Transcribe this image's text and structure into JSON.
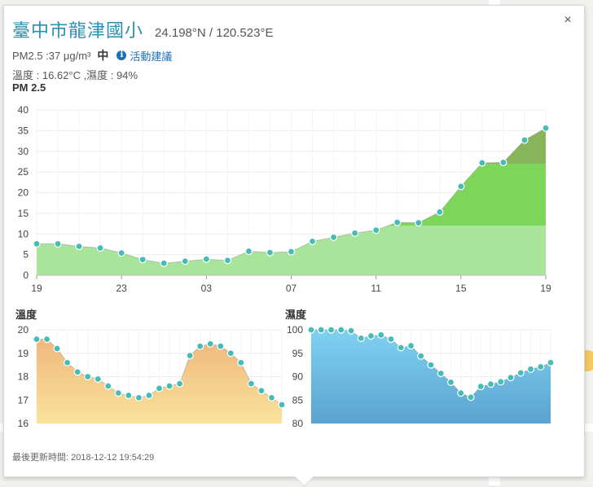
{
  "station": {
    "name": "臺中市龍津國小",
    "coords": "24.198°N / 120.523°E"
  },
  "summary": {
    "pm25_text": "PM2.5 :37 μg/m³",
    "level": "中",
    "advice_link": "活動建議",
    "weather_text": "溫度 : 16.62°C ,濕度 : 94%"
  },
  "close_icon": "×",
  "footer_text": "最後更新時間: 2018-12-12 19:54:29",
  "colors": {
    "station_name": "#2a8fb0",
    "marker": "#45bdb6",
    "pm_good": "#a8e49a",
    "pm_moderate": "#7dd65a",
    "pm_high": "#86b55a",
    "temp_fill": "#f5c98f",
    "hum_fill": "#6cb6e0"
  },
  "chart_data": [
    {
      "type": "area",
      "title": "PM 2.5",
      "x_tick_labels": [
        "19",
        "23",
        "03",
        "07",
        "11",
        "15",
        "19"
      ],
      "y_ticks": [
        0,
        5,
        10,
        15,
        20,
        25,
        30,
        35,
        40
      ],
      "ylim": [
        0,
        40
      ],
      "grid": true,
      "values": [
        7.6,
        7.6,
        7.0,
        6.6,
        5.4,
        3.8,
        2.9,
        3.4,
        3.9,
        3.6,
        5.8,
        5.5,
        5.7,
        8.2,
        9.2,
        10.2,
        10.9,
        12.8,
        12.7,
        15.3,
        21.5,
        27.2,
        27.3,
        32.7,
        35.6
      ]
    },
    {
      "type": "area",
      "title": "溫度",
      "y_ticks": [
        16,
        17,
        18,
        19,
        20
      ],
      "ylim": [
        16,
        20
      ],
      "grid": true,
      "values": [
        19.6,
        19.6,
        19.2,
        18.6,
        18.2,
        18.0,
        17.9,
        17.6,
        17.3,
        17.2,
        17.1,
        17.2,
        17.5,
        17.6,
        17.7,
        18.9,
        19.3,
        19.4,
        19.3,
        19.0,
        18.6,
        17.7,
        17.4,
        17.1,
        16.8
      ]
    },
    {
      "type": "area",
      "title": "濕度",
      "y_ticks": [
        80,
        85,
        90,
        95,
        100
      ],
      "ylim": [
        80,
        100
      ],
      "grid": true,
      "values": [
        100,
        100,
        100,
        100,
        99.8,
        98.2,
        98.7,
        98.9,
        98.0,
        96.2,
        96.6,
        94.4,
        92.5,
        90.7,
        88.8,
        86.5,
        85.6,
        87.9,
        88.4,
        88.9,
        89.8,
        90.8,
        91.6,
        92.1,
        93.0
      ]
    }
  ]
}
